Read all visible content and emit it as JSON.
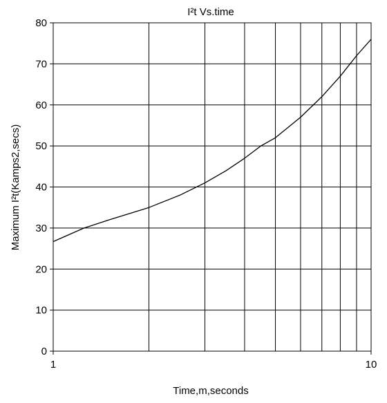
{
  "chart_data": {
    "type": "line",
    "title": "I²t  Vs.time",
    "xlabel": "Time,m,seconds",
    "ylabel": "Maximum I²t(Kamps2,secs)",
    "xscale": "log",
    "xlim": [
      1,
      10
    ],
    "ylim": [
      0,
      80
    ],
    "x_tick_labels": [
      "1",
      "10"
    ],
    "x_tick_values": [
      1,
      10
    ],
    "y_tick_labels": [
      "0",
      "10",
      "20",
      "30",
      "40",
      "50",
      "60",
      "70",
      "80"
    ],
    "y_tick_values": [
      0,
      10,
      20,
      30,
      40,
      50,
      60,
      70,
      80
    ],
    "grid": true,
    "legend": "none",
    "line_color": "#000000",
    "series": [
      {
        "x": [
          1,
          1.25,
          1.5,
          2,
          2.5,
          3,
          3.5,
          4,
          4.5,
          5,
          6,
          7,
          8,
          9,
          10
        ],
        "y": [
          26.7,
          30,
          32,
          35,
          38,
          41,
          44,
          47,
          50,
          52,
          57,
          62,
          67,
          72,
          76
        ]
      }
    ]
  }
}
